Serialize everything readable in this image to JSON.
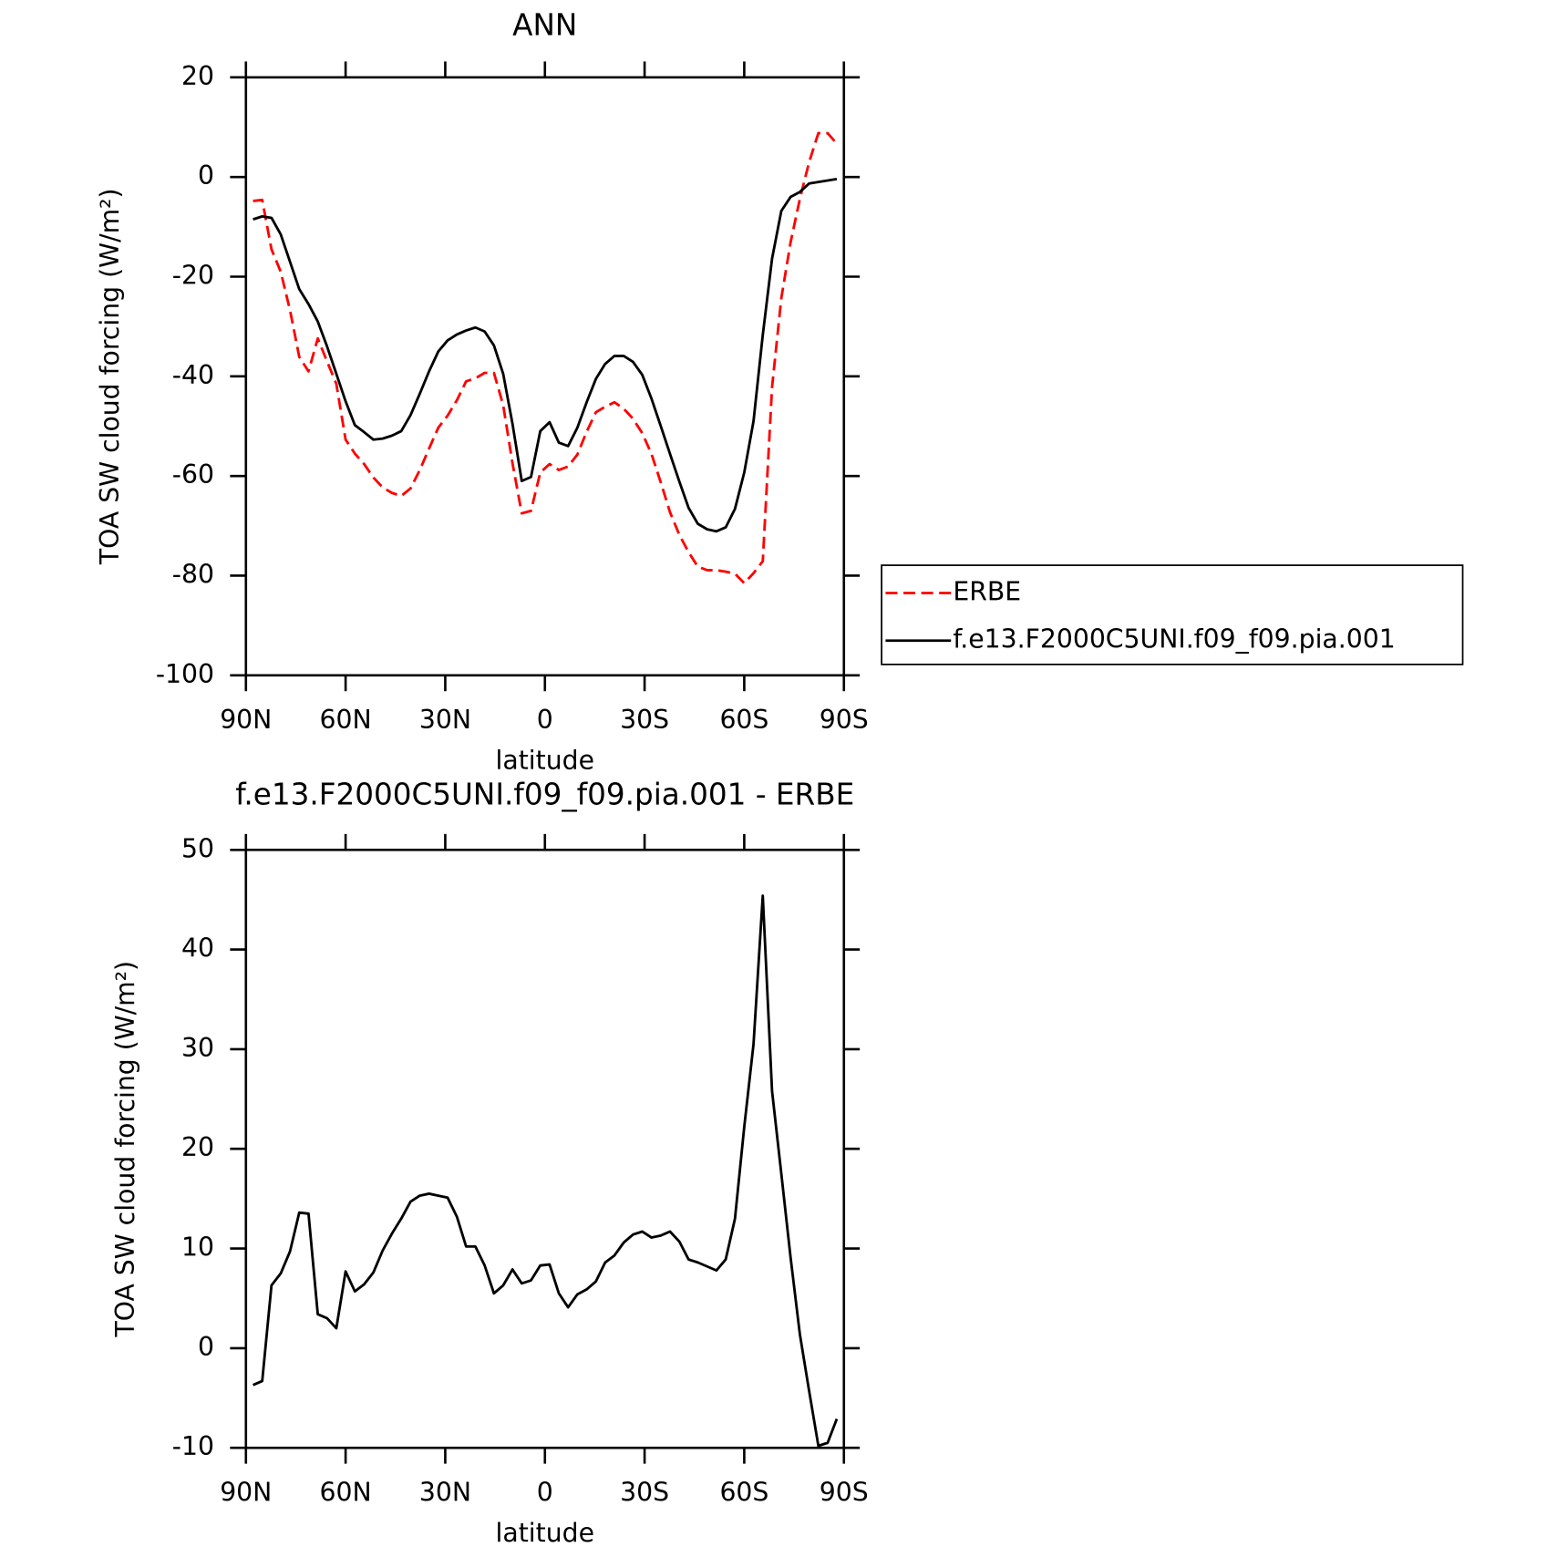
{
  "chart_data": [
    {
      "type": "line",
      "title": "ANN",
      "xlabel": "latitude",
      "ylabel": "TOA SW cloud forcing (W/m²)",
      "x": [
        87.86,
        85.1,
        82.31,
        79.53,
        76.74,
        73.95,
        71.16,
        68.37,
        65.58,
        62.79,
        60.0,
        57.21,
        54.42,
        51.63,
        48.84,
        46.04,
        43.25,
        40.46,
        37.67,
        34.88,
        32.09,
        29.3,
        26.51,
        23.72,
        20.93,
        18.14,
        15.35,
        12.56,
        9.77,
        6.98,
        4.19,
        1.4,
        -1.4,
        -4.19,
        -6.98,
        -9.77,
        -12.56,
        -15.35,
        -18.14,
        -20.93,
        -23.72,
        -26.51,
        -29.3,
        -32.09,
        -34.88,
        -37.67,
        -40.46,
        -43.25,
        -46.04,
        -48.84,
        -51.63,
        -54.42,
        -57.21,
        -60.0,
        -62.79,
        -65.58,
        -68.37,
        -71.16,
        -73.95,
        -76.74,
        -79.53,
        -82.31,
        -85.1,
        -87.86
      ],
      "series": [
        {
          "name": "ERBE",
          "color": "#ff0000",
          "linestyle": "dashed",
          "values": [
            -4.8,
            -4.6,
            -14.5,
            -19,
            -26.7,
            -36.1,
            -39,
            -32.4,
            -37,
            -41.5,
            -52.7,
            -55.5,
            -57.6,
            -60.3,
            -62.3,
            -63.4,
            -64,
            -62.5,
            -58.8,
            -54.5,
            -50.3,
            -47.9,
            -44.8,
            -41,
            -40.4,
            -39.3,
            -39.3,
            -45.8,
            -57.4,
            -67.5,
            -67,
            -59.3,
            -57.6,
            -58.8,
            -58.1,
            -55.7,
            -51.1,
            -47.2,
            -46.1,
            -45.2,
            -46.5,
            -48.5,
            -51.4,
            -55.6,
            -61.3,
            -67.3,
            -71.8,
            -75.3,
            -78.2,
            -78.9,
            -78.9,
            -79.2,
            -79.6,
            -81.5,
            -79.5,
            -77.1,
            -42.2,
            -24.3,
            -13.1,
            -4.4,
            3,
            8.8,
            8.8,
            6.7
          ]
        },
        {
          "name": "f.e13.F2000C5UNI.f09_f09.pia.001",
          "color": "#000000",
          "linestyle": "solid",
          "values": [
            -8.5,
            -7.9,
            -8.2,
            -11.5,
            -17,
            -22.5,
            -25.5,
            -29,
            -34,
            -39.5,
            -45,
            -49.8,
            -51.2,
            -52.7,
            -52.5,
            -51.9,
            -51,
            -47.8,
            -43.5,
            -39,
            -35,
            -32.8,
            -31.6,
            -30.8,
            -30.2,
            -31,
            -33.8,
            -39.5,
            -49.5,
            -61,
            -60.2,
            -51,
            -49.2,
            -53.3,
            -54,
            -50.3,
            -45.2,
            -40.5,
            -37.5,
            -35.9,
            -35.9,
            -37.1,
            -39.7,
            -44.5,
            -50,
            -55.6,
            -61.1,
            -66.4,
            -69.6,
            -70.7,
            -71.1,
            -70.3,
            -66.6,
            -59.3,
            -49,
            -31.7,
            -16.4,
            -6.8,
            -4,
            -3,
            -1.3,
            -1,
            -0.7,
            -0.4
          ]
        }
      ],
      "xlim": [
        90,
        -90
      ],
      "xticks": [
        {
          "value": 90,
          "label": "90N"
        },
        {
          "value": 60,
          "label": "60N"
        },
        {
          "value": 30,
          "label": "30N"
        },
        0,
        {
          "value": -30,
          "label": "30S"
        },
        {
          "value": -60,
          "label": "60S"
        },
        {
          "value": -90,
          "label": "90S"
        }
      ],
      "ylim": [
        -100,
        20
      ],
      "yticks": [
        -100,
        -80,
        -60,
        -40,
        -20,
        0,
        20
      ],
      "legend": "right"
    },
    {
      "type": "line",
      "title": "f.e13.F2000C5UNI.f09_f09.pia.001 - ERBE",
      "xlabel": "latitude",
      "ylabel": "TOA SW cloud forcing (W/m²)",
      "x": [
        87.86,
        85.1,
        82.31,
        79.53,
        76.74,
        73.95,
        71.16,
        68.37,
        65.58,
        62.79,
        60.0,
        57.21,
        54.42,
        51.63,
        48.84,
        46.04,
        43.25,
        40.46,
        37.67,
        34.88,
        32.09,
        29.3,
        26.51,
        23.72,
        20.93,
        18.14,
        15.35,
        12.56,
        9.77,
        6.98,
        4.19,
        1.4,
        -1.4,
        -4.19,
        -6.98,
        -9.77,
        -12.56,
        -15.35,
        -18.14,
        -20.93,
        -23.72,
        -26.51,
        -29.3,
        -32.09,
        -34.88,
        -37.67,
        -40.46,
        -43.25,
        -46.04,
        -48.84,
        -51.63,
        -54.42,
        -57.21,
        -60.0,
        -62.79,
        -65.58,
        -68.37,
        -71.16,
        -73.95,
        -76.74,
        -79.53,
        -82.31,
        -85.1,
        -87.86
      ],
      "series": [
        {
          "color": "#000000",
          "linestyle": "solid",
          "values": [
            -3.7,
            -3.3,
            6.3,
            7.5,
            9.7,
            13.6,
            13.5,
            3.4,
            3.0,
            2.0,
            7.7,
            5.7,
            6.4,
            7.6,
            9.8,
            11.5,
            13.0,
            14.7,
            15.3,
            15.5,
            15.3,
            15.1,
            13.2,
            10.2,
            10.2,
            8.3,
            5.5,
            6.3,
            7.9,
            6.5,
            6.8,
            8.3,
            8.4,
            5.5,
            4.1,
            5.4,
            5.9,
            6.7,
            8.6,
            9.3,
            10.6,
            11.4,
            11.7,
            11.1,
            11.3,
            11.7,
            10.7,
            8.9,
            8.6,
            8.2,
            7.8,
            8.9,
            13.0,
            22.2,
            30.5,
            45.4,
            25.8,
            17.5,
            9.1,
            1.4,
            -4.3,
            -9.8,
            -9.5,
            -7.1
          ]
        }
      ],
      "xlim": [
        90,
        -90
      ],
      "xticks": [
        {
          "value": 90,
          "label": "90N"
        },
        {
          "value": 60,
          "label": "60N"
        },
        {
          "value": 30,
          "label": "30N"
        },
        0,
        {
          "value": -30,
          "label": "30S"
        },
        {
          "value": -60,
          "label": "60S"
        },
        {
          "value": -90,
          "label": "90S"
        }
      ],
      "ylim": [
        -10,
        50
      ],
      "yticks": [
        -10,
        0,
        10,
        20,
        30,
        40,
        50
      ]
    }
  ]
}
